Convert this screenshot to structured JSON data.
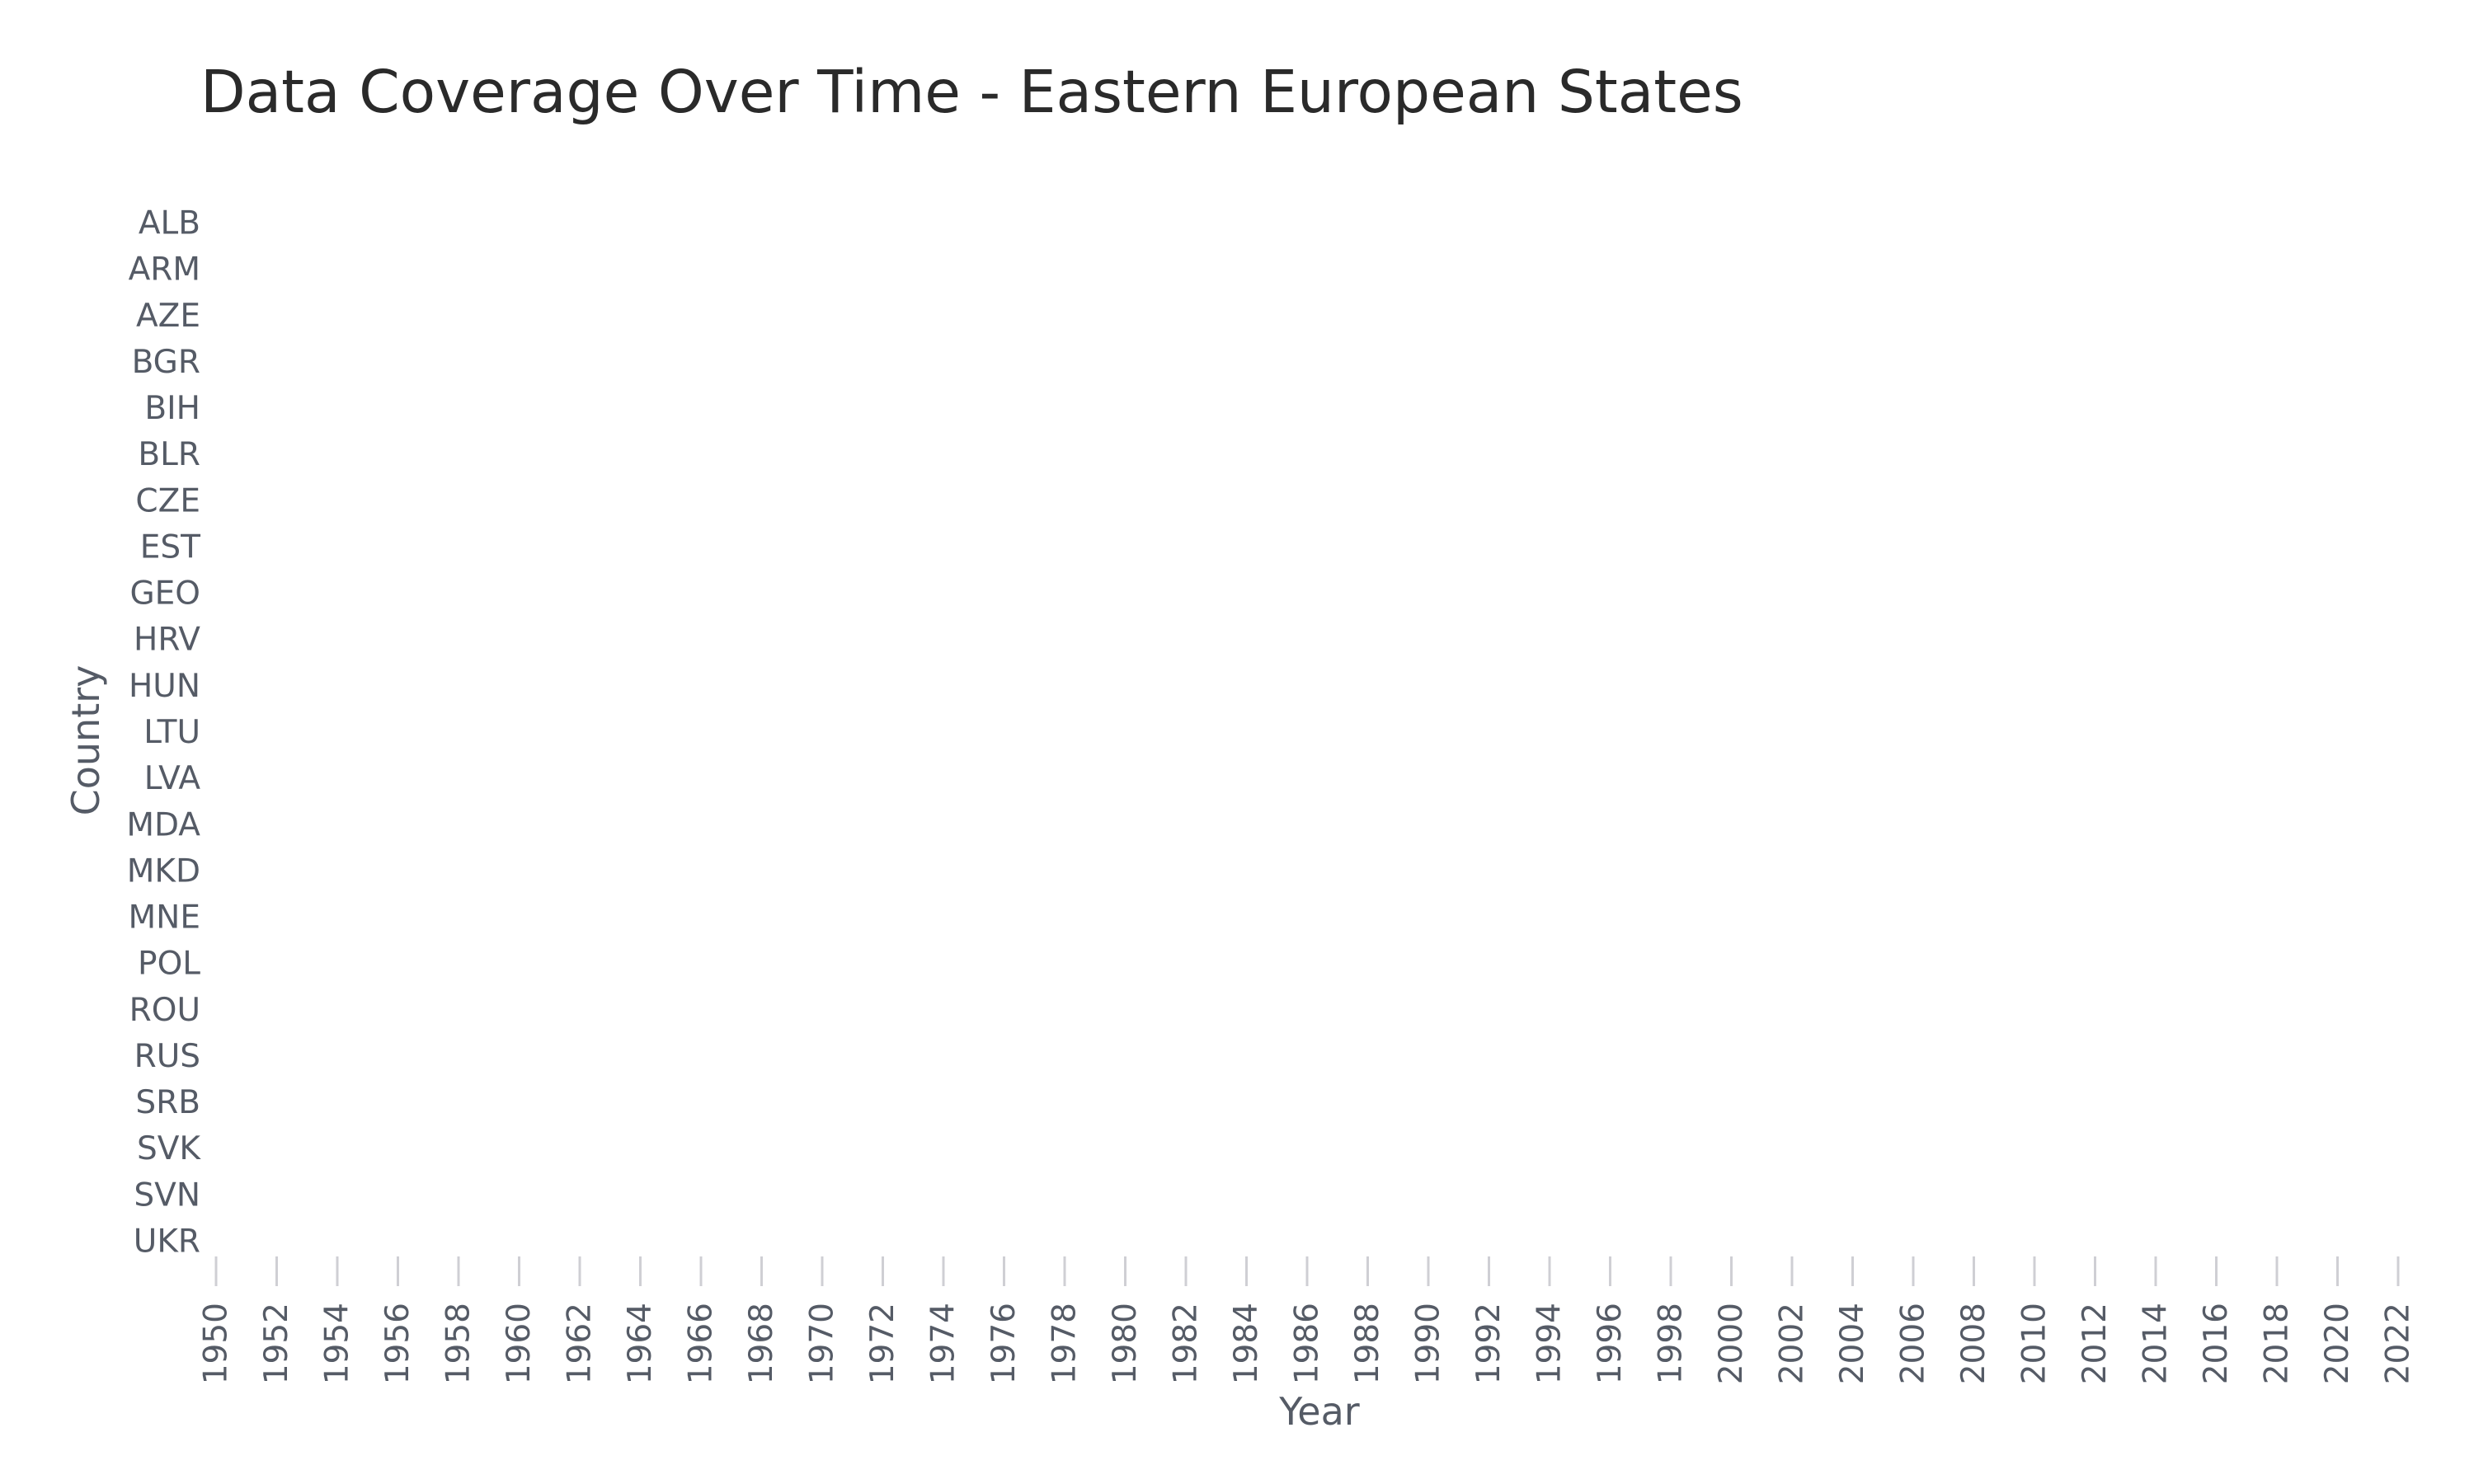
{
  "chart_data": {
    "type": "heatmap",
    "title": "Data Coverage Over Time - Eastern European States",
    "xlabel": "Year",
    "ylabel": "Country",
    "x": [
      1950,
      1952,
      1954,
      1956,
      1958,
      1960,
      1962,
      1964,
      1966,
      1968,
      1970,
      1972,
      1974,
      1976,
      1978,
      1980,
      1982,
      1984,
      1986,
      1988,
      1990,
      1992,
      1994,
      1996,
      1998,
      2000,
      2002,
      2004,
      2006,
      2008,
      2010,
      2012,
      2014,
      2016,
      2018,
      2020,
      2022
    ],
    "xlim": [
      1950,
      2022
    ],
    "categories": [
      "ALB",
      "ARM",
      "AZE",
      "BGR",
      "BIH",
      "BLR",
      "CZE",
      "EST",
      "GEO",
      "HRV",
      "HUN",
      "LTU",
      "LVA",
      "MDA",
      "MKD",
      "MNE",
      "POL",
      "ROU",
      "RUS",
      "SRB",
      "SVK",
      "SVN",
      "UKR"
    ],
    "series": [],
    "grid": false,
    "legend": "none"
  }
}
